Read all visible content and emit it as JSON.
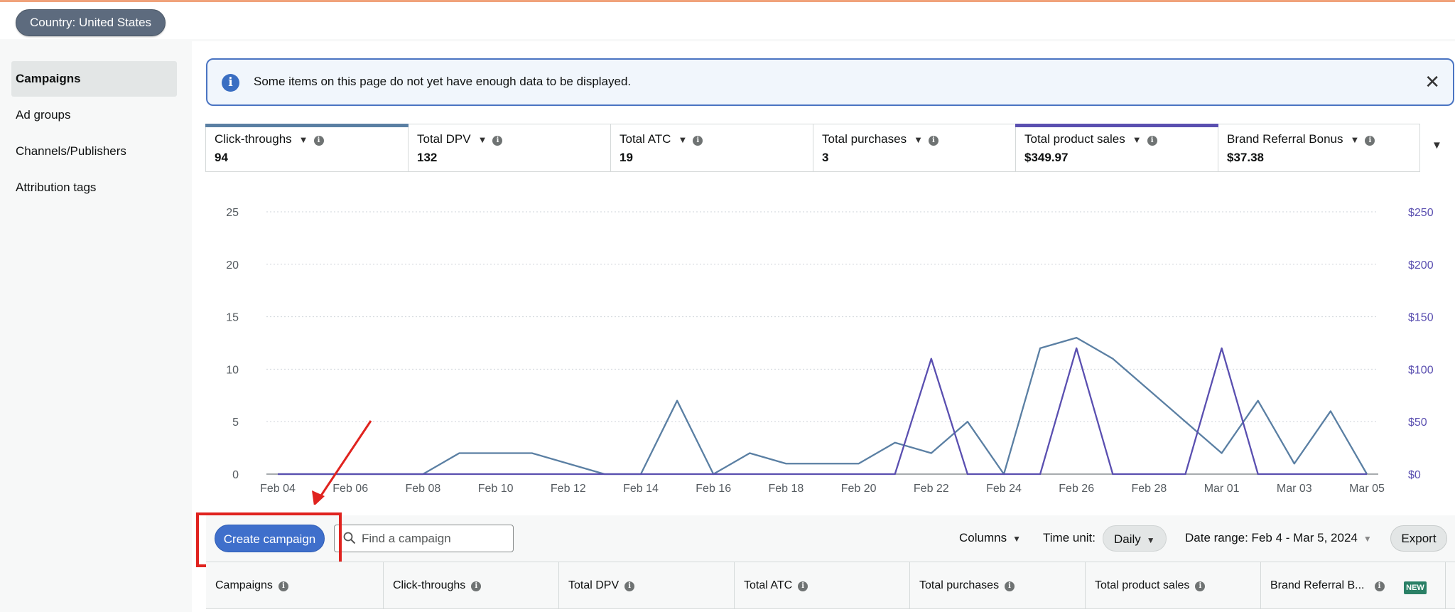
{
  "header": {
    "country_label": "Country: United States"
  },
  "sidebar": {
    "items": [
      {
        "label": "Campaigns",
        "active": true
      },
      {
        "label": "Ad groups",
        "active": false
      },
      {
        "label": "Channels/Publishers",
        "active": false
      },
      {
        "label": "Attribution tags",
        "active": false
      }
    ]
  },
  "alert": {
    "icon": "info-icon",
    "text": "Some items on this page do not yet have enough data to be displayed.",
    "close_icon": "close-icon"
  },
  "metrics": [
    {
      "label": "Click-throughs",
      "value": "94",
      "selected_color": "#5a7fa3"
    },
    {
      "label": "Total DPV",
      "value": "132"
    },
    {
      "label": "Total ATC",
      "value": "19"
    },
    {
      "label": "Total purchases",
      "value": "3"
    },
    {
      "label": "Total product sales",
      "value": "$349.97",
      "selected_color": "#5a4fb0"
    },
    {
      "label": "Brand Referral Bonus",
      "value": "$37.38"
    }
  ],
  "chart_data": {
    "type": "line",
    "x": [
      "Feb 04",
      "Feb 05",
      "Feb 06",
      "Feb 07",
      "Feb 08",
      "Feb 09",
      "Feb 10",
      "Feb 11",
      "Feb 12",
      "Feb 13",
      "Feb 14",
      "Feb 15",
      "Feb 16",
      "Feb 17",
      "Feb 18",
      "Feb 19",
      "Feb 20",
      "Feb 21",
      "Feb 22",
      "Feb 23",
      "Feb 24",
      "Feb 25",
      "Feb 26",
      "Feb 27",
      "Feb 28",
      "Feb 29",
      "Mar 01",
      "Mar 02",
      "Mar 03",
      "Mar 04",
      "Mar 05"
    ],
    "xticks": [
      "Feb 04",
      "Feb 06",
      "Feb 08",
      "Feb 10",
      "Feb 12",
      "Feb 14",
      "Feb 16",
      "Feb 18",
      "Feb 20",
      "Feb 22",
      "Feb 24",
      "Feb 26",
      "Feb 28",
      "Mar 01",
      "Mar 03",
      "Mar 05"
    ],
    "series": [
      {
        "axis": "left",
        "color": "#5a7fa3",
        "values": [
          0,
          0,
          0,
          0,
          0,
          2,
          2,
          2,
          1,
          0,
          0,
          7,
          0,
          2,
          1,
          1,
          1,
          3,
          2,
          5,
          0,
          12,
          13,
          11,
          8,
          5,
          2,
          7,
          1,
          6,
          0
        ]
      },
      {
        "axis": "right",
        "color": "#5a4fb0",
        "values": [
          0,
          0,
          0,
          0,
          0,
          0,
          0,
          0,
          0,
          0,
          0,
          0,
          0,
          0,
          0,
          0,
          0,
          0,
          110,
          0,
          0,
          0,
          120,
          0,
          0,
          0,
          120,
          0,
          0,
          0,
          0
        ]
      }
    ],
    "y_left": {
      "ticks": [
        "0",
        "5",
        "10",
        "15",
        "20",
        "25"
      ],
      "range": [
        0,
        25
      ]
    },
    "y_right": {
      "ticks": [
        "$0",
        "$50",
        "$100",
        "$150",
        "$200",
        "$250"
      ],
      "range": [
        0,
        250
      ]
    },
    "grid": true
  },
  "toolbar": {
    "create_label": "Create campaign",
    "search_placeholder": "Find a campaign",
    "columns_label": "Columns",
    "time_unit_label": "Time unit:",
    "time_unit_value": "Daily",
    "date_range_label": "Date range: Feb 4 - Mar 5, 2024",
    "export_label": "Export"
  },
  "table": {
    "headers": [
      "Campaigns",
      "Click-throughs",
      "Total DPV",
      "Total ATC",
      "Total purchases",
      "Total product sales",
      "Brand Referral B..."
    ],
    "new_badge": "NEW"
  },
  "annotation": {
    "color": "#e0231f"
  }
}
